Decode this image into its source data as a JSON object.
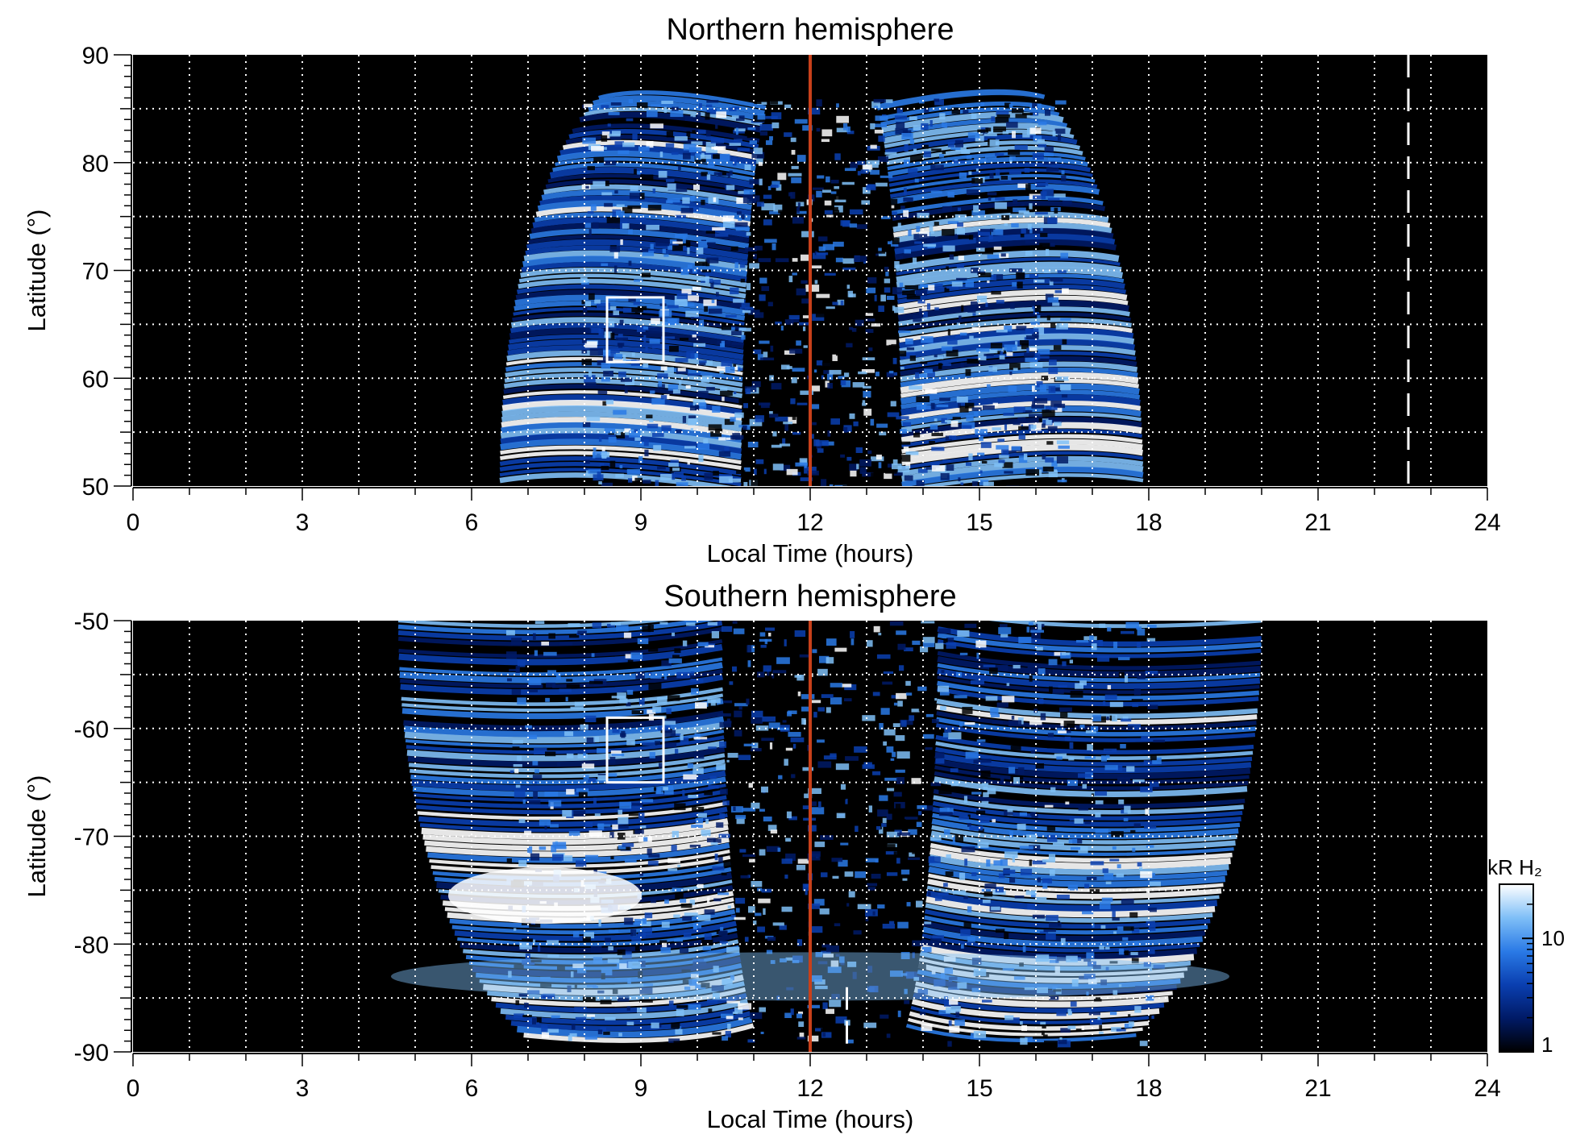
{
  "chart_data": [
    {
      "id": "north",
      "type": "heatmap",
      "title": "Northern hemisphere",
      "xlabel": "Local Time (hours)",
      "ylabel": "Latitude (°)",
      "xlim": [
        0,
        24
      ],
      "ylim": [
        50,
        90
      ],
      "xticks": [
        0,
        3,
        6,
        9,
        12,
        15,
        18,
        21,
        24
      ],
      "yticks": [
        50,
        60,
        70,
        80,
        90
      ],
      "grid": true,
      "emission_extent": {
        "lt_min": 6.5,
        "lt_max": 17.9,
        "lat_min": 50,
        "lat_max": 86
      },
      "noon_line": 12,
      "dashed_line": 22.6,
      "box": {
        "lt": [
          8.4,
          9.4
        ],
        "lat": [
          61.5,
          67.5
        ]
      }
    },
    {
      "id": "south",
      "type": "heatmap",
      "title": "Southern hemisphere",
      "xlabel": "Local Time (hours)",
      "ylabel": "Latitude (°)",
      "xlim": [
        0,
        24
      ],
      "ylim": [
        -90,
        -50
      ],
      "xticks": [
        0,
        3,
        6,
        9,
        12,
        15,
        18,
        21,
        24
      ],
      "yticks": [
        -90,
        -80,
        -70,
        -60,
        -50
      ],
      "grid": true,
      "emission_extent": {
        "lt_min": 4.7,
        "lt_max": 20.0,
        "lat_min": -89,
        "lat_max": -50
      },
      "noon_line": 12,
      "dashed_line": 12.65,
      "box": {
        "lt": [
          8.4,
          9.4
        ],
        "lat": [
          -65,
          -59
        ]
      }
    }
  ],
  "colorbar": {
    "label": "kR H₂",
    "scale": "log",
    "range": [
      1,
      30
    ],
    "ticks": [
      1,
      10
    ],
    "colors": [
      "#000000",
      "#001a66",
      "#0a3fb0",
      "#2a7ae6",
      "#7fbff7",
      "#ffffff"
    ]
  },
  "colors": {
    "noon_line": "#c8401a",
    "grid": "#ffffff",
    "background": "#000000"
  }
}
